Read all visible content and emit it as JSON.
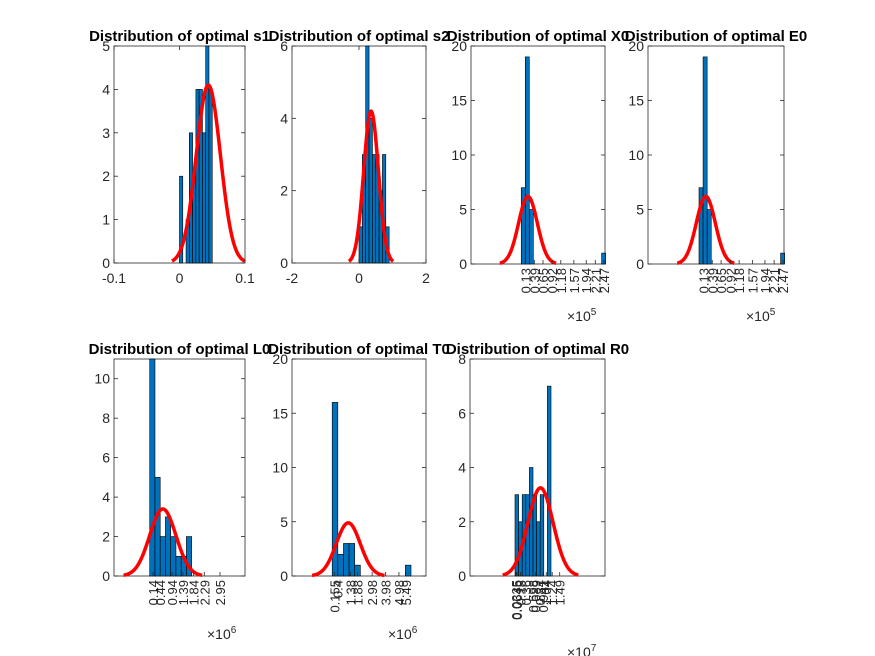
{
  "figure": {
    "background": "#ffffff",
    "bar_color": "#0072BD",
    "fit_color": "#FF0000"
  },
  "chart_data": [
    {
      "type": "bar",
      "title": "Distribution of optimal s1",
      "xlim": [
        -0.1,
        0.1
      ],
      "ylim": [
        0,
        5
      ],
      "xticks": [
        "-0.1",
        "0",
        "0.1"
      ],
      "yticks": [
        "0",
        "1",
        "2",
        "3",
        "4",
        "5"
      ],
      "x_exponent": "",
      "bins": {
        "start": 0.0,
        "width": 0.005,
        "counts": [
          2,
          0,
          1,
          3,
          2,
          4,
          4,
          3,
          5,
          4
        ]
      },
      "fit": {
        "mean": 0.044,
        "sd": 0.0185,
        "peak": 4.1
      }
    },
    {
      "type": "bar",
      "title": "Distribution of optimal s2",
      "xlim": [
        -2,
        2
      ],
      "ylim": [
        0,
        6
      ],
      "xticks": [
        "-2",
        "0",
        "2"
      ],
      "yticks": [
        "0",
        "2",
        "4",
        "6"
      ],
      "x_exponent": "",
      "bins": {
        "start": 0.0,
        "width": 0.1,
        "counts": [
          1,
          3,
          6,
          4,
          3,
          3,
          2,
          3,
          1,
          0
        ]
      },
      "fit": {
        "mean": 0.36,
        "sd": 0.22,
        "peak": 4.2
      }
    },
    {
      "type": "bar",
      "title": "Distribution of optimal X0",
      "xlim": [
        -1.5,
        2.5
      ],
      "ylim": [
        0,
        20
      ],
      "xticks": [
        "0.13",
        "0.39",
        "0.65",
        "0.92",
        "1.18",
        "1.57",
        "1.94",
        "2.21",
        "2.47"
      ],
      "yticks": [
        "0",
        "5",
        "10",
        "15",
        "20"
      ],
      "x_exponent": "5",
      "bins": {
        "start": 0.0,
        "width": 0.12,
        "counts": [
          7,
          19,
          5,
          0,
          0,
          0,
          0,
          0,
          0,
          0,
          0,
          0,
          0,
          0,
          0,
          0,
          0,
          0,
          0,
          0,
          1
        ]
      },
      "fit": {
        "mean": 0.2,
        "sd": 0.28,
        "peak": 6.2
      }
    },
    {
      "type": "bar",
      "title": "Distribution of optimal E0",
      "xlim": [
        -1.5,
        2.5
      ],
      "ylim": [
        0,
        20
      ],
      "xticks": [
        "0.13",
        "0.39",
        "0.65",
        "0.92",
        "1.18",
        "1.57",
        "1.94",
        "2.21",
        "2.47"
      ],
      "yticks": [
        "0",
        "5",
        "10",
        "15",
        "20"
      ],
      "x_exponent": "5",
      "bins": {
        "start": 0.0,
        "width": 0.12,
        "counts": [
          7,
          19,
          5,
          0,
          0,
          0,
          0,
          0,
          0,
          0,
          0,
          0,
          0,
          0,
          0,
          0,
          0,
          0,
          0,
          0,
          1
        ]
      },
      "fit": {
        "mean": 0.2,
        "sd": 0.28,
        "peak": 6.2
      }
    },
    {
      "type": "bar",
      "title": "Distribution of optimal L0",
      "xlim": [
        -1.5,
        4.0
      ],
      "ylim": [
        0,
        11
      ],
      "xticks": [
        "0.14",
        "0.44",
        "0.94",
        "1.39",
        "1.84",
        "2.29",
        "2.95"
      ],
      "yticks": [
        "0",
        "2",
        "4",
        "6",
        "8",
        "10"
      ],
      "x_exponent": "6",
      "bins": {
        "start": 0.0,
        "width": 0.22,
        "counts": [
          11,
          5,
          2,
          3,
          2,
          1,
          1,
          2
        ]
      },
      "fit": {
        "mean": 0.55,
        "sd": 0.55,
        "peak": 3.4
      }
    },
    {
      "type": "bar",
      "title": "Distribution of optimal T0",
      "xlim": [
        -3.0,
        7.0
      ],
      "ylim": [
        0,
        20
      ],
      "xticks": [
        "0.155",
        "0.4",
        "1.38",
        "1.88",
        "2.98",
        "3.98",
        "4.98",
        "5.49"
      ],
      "yticks": [
        "0",
        "5",
        "10",
        "15",
        "20"
      ],
      "x_exponent": "6",
      "bins": {
        "start": 0.0,
        "width": 0.42,
        "counts": [
          16,
          2,
          3,
          3,
          1,
          0,
          0,
          0,
          0,
          0,
          0,
          0,
          0,
          1
        ]
      },
      "fit": {
        "mean": 1.2,
        "sd": 0.9,
        "peak": 4.9
      }
    },
    {
      "type": "bar",
      "title": "Distribution of optimal R0",
      "xlim": [
        -1.5,
        3.0
      ],
      "ylim": [
        0,
        8
      ],
      "xticks": [
        "0.0335",
        "0.0645",
        "0.18",
        "0.36",
        "0.598",
        "0.689",
        "0.84",
        "0.941",
        "1.04",
        "1.24",
        "1.49"
      ],
      "yticks": [
        "0",
        "2",
        "4",
        "6",
        "8"
      ],
      "x_exponent": "7",
      "bins": {
        "start": 0.0,
        "width": 0.12,
        "counts": [
          3,
          2,
          3,
          3,
          4,
          3,
          2,
          3,
          0,
          7
        ]
      },
      "fit": {
        "mean": 0.85,
        "sd": 0.42,
        "peak": 3.25
      }
    }
  ]
}
